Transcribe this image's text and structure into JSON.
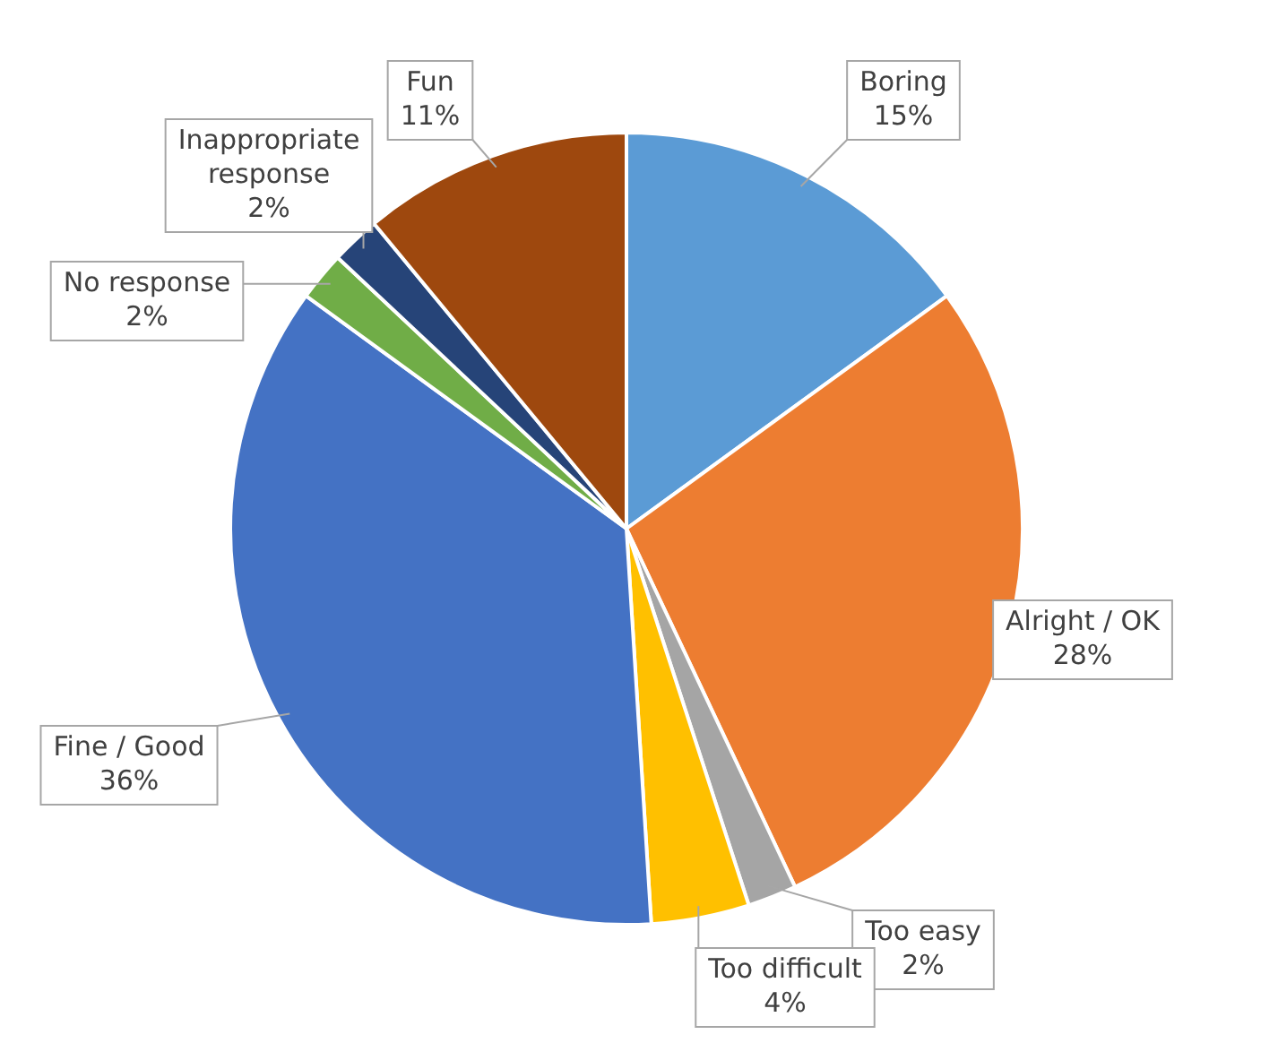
{
  "chart_data": {
    "type": "pie",
    "categories": [
      "Boring",
      "Alright / OK",
      "Too easy",
      "Too difficult",
      "Fine / Good",
      "No response",
      "Inappropriate response",
      "Fun"
    ],
    "values": [
      15,
      28,
      2,
      4,
      36,
      2,
      2,
      11
    ],
    "value_labels": [
      "15%",
      "28%",
      "2%",
      "4%",
      "36%",
      "2%",
      "2%",
      "11%"
    ],
    "colors": [
      "#5b9bd5",
      "#ed7d31",
      "#a5a5a5",
      "#ffc000",
      "#4472c4",
      "#70ad47",
      "#264478",
      "#9e480e"
    ],
    "legend": false
  }
}
